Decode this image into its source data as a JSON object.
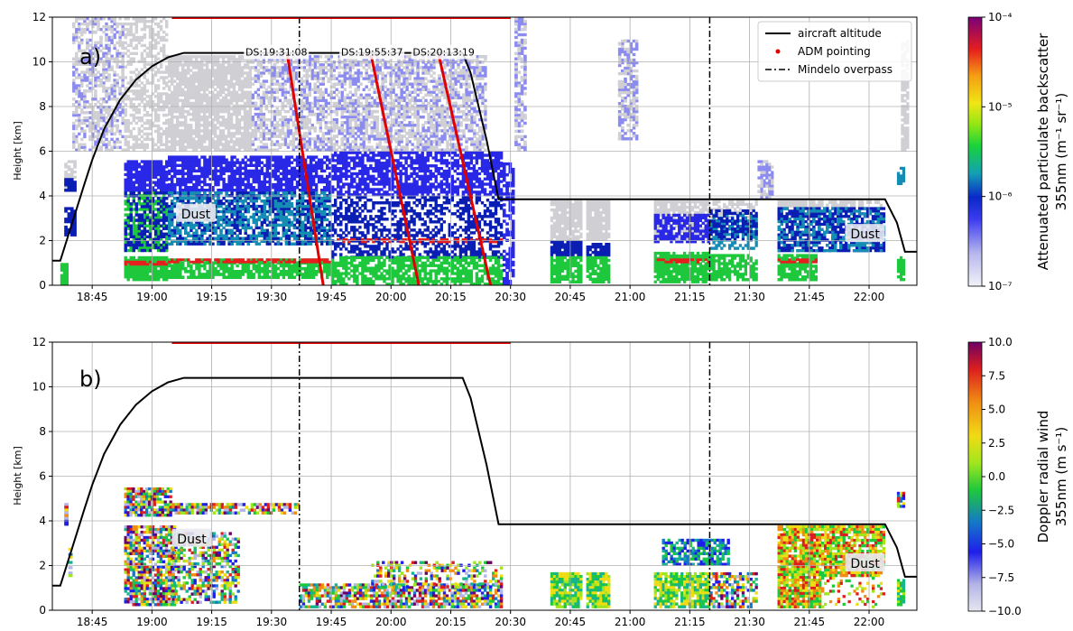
{
  "chart_data": [
    {
      "panel": "a)",
      "type": "heatmap",
      "ylabel": "Height [km]",
      "ylim": [
        0,
        12
      ],
      "yticks": [
        0,
        2,
        4,
        6,
        8,
        10,
        12
      ],
      "xlim": [
        "18:35",
        "22:12"
      ],
      "xticks": [
        "18:45",
        "19:00",
        "19:15",
        "19:30",
        "19:45",
        "20:00",
        "20:15",
        "20:30",
        "20:45",
        "21:00",
        "21:15",
        "21:30",
        "21:45",
        "22:00"
      ],
      "grid": true,
      "legend_placement": "top-right",
      "legend": [
        "aircraft altitude",
        "ADM pointing",
        "Mindelo overpass"
      ],
      "colorbar": {
        "label_line1": "Attenuated particulate backscatter",
        "label_line2": "355nm (m⁻¹ sr⁻¹)",
        "scale": "log",
        "tick_labels": [
          "10⁻⁴",
          "10⁻⁵",
          "10⁻⁶",
          "10⁻⁷"
        ],
        "tick_values": [
          -4,
          -5,
          -6,
          -7
        ],
        "range": [
          -7,
          -4
        ]
      },
      "annotations": [
        {
          "text": "DS:19:31:08",
          "x": "19:31",
          "y": 10.4
        },
        {
          "text": "DS:19:55:37",
          "x": "19:55",
          "y": 10.4
        },
        {
          "text": "DS:20:13:19",
          "x": "20:13",
          "y": 10.4
        },
        {
          "text": "Dust",
          "x": "19:11",
          "y": 3.2
        },
        {
          "text": "Dust",
          "x": "21:59",
          "y": 2.3
        }
      ],
      "dive_lines": [
        {
          "x": [
            "19:34",
            "19:43"
          ],
          "y": [
            10.3,
            0
          ]
        },
        {
          "x": [
            "19:55",
            "20:07"
          ],
          "y": [
            10.3,
            0
          ]
        },
        {
          "x": [
            "20:12",
            "20:25"
          ],
          "y": [
            10.3,
            0
          ]
        }
      ]
    },
    {
      "panel": "b)",
      "type": "heatmap",
      "ylabel": "Height [km]",
      "ylim": [
        0,
        12
      ],
      "yticks": [
        0,
        2,
        4,
        6,
        8,
        10,
        12
      ],
      "xlim": [
        "18:35",
        "22:12"
      ],
      "xticks": [
        "18:45",
        "19:00",
        "19:15",
        "19:30",
        "19:45",
        "20:00",
        "20:15",
        "20:30",
        "20:45",
        "21:00",
        "21:15",
        "21:30",
        "21:45",
        "22:00"
      ],
      "grid": true,
      "colorbar": {
        "label_line1": "Doppler radial wind",
        "label_line2": "355nm (m s⁻¹)",
        "scale": "linear",
        "tick_labels": [
          "10.0",
          "7.5",
          "5.0",
          "2.5",
          "0.0",
          "−2.5",
          "−5.0",
          "−7.5",
          "−10.0"
        ],
        "tick_values": [
          10,
          7.5,
          5,
          2.5,
          0,
          -2.5,
          -5,
          -7.5,
          -10
        ],
        "range": [
          -10,
          10
        ]
      },
      "annotations": [
        {
          "text": "Dust",
          "x": "19:10",
          "y": 3.2
        },
        {
          "text": "Dust",
          "x": "21:59",
          "y": 2.1
        }
      ]
    }
  ],
  "shared": {
    "aircraft_altitude": {
      "x": [
        "18:35",
        "18:37",
        "18:40",
        "18:43",
        "18:45",
        "18:48",
        "18:52",
        "18:56",
        "19:00",
        "19:04",
        "19:08",
        "19:24",
        "19:50",
        "20:18",
        "20:20",
        "20:24",
        "20:27",
        "21:00",
        "21:45",
        "22:04",
        "22:07",
        "22:09",
        "22:12"
      ],
      "y": [
        1.1,
        1.1,
        2.8,
        4.5,
        5.6,
        7.0,
        8.3,
        9.2,
        9.8,
        10.2,
        10.4,
        10.4,
        10.4,
        10.4,
        9.5,
        6.5,
        3.85,
        3.85,
        3.85,
        3.85,
        2.8,
        1.5,
        1.5
      ]
    },
    "adm_pointing": {
      "x": [
        "19:05",
        "20:30"
      ],
      "y": 12
    },
    "mindelo_overpass": {
      "x": [
        "19:37",
        "21:20"
      ]
    }
  }
}
